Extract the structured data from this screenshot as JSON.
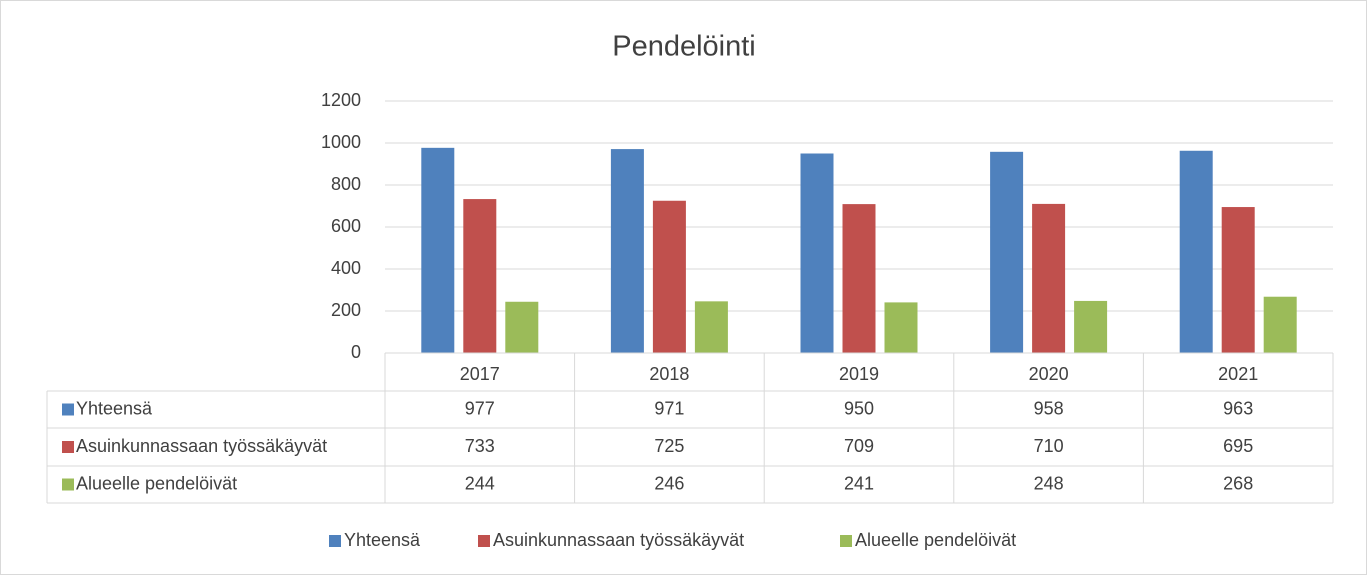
{
  "chart_data": {
    "type": "bar",
    "title": "Pendelöinti",
    "categories": [
      "2017",
      "2018",
      "2019",
      "2020",
      "2021"
    ],
    "series": [
      {
        "name": "Yhteensä",
        "color": "#4f81bd",
        "values": [
          977,
          971,
          950,
          958,
          963
        ]
      },
      {
        "name": "Asuinkunnassaan työssäkäyvät",
        "color": "#c0504d",
        "values": [
          733,
          725,
          709,
          710,
          695
        ]
      },
      {
        "name": "Alueelle pendelöivät",
        "color": "#9bbb59",
        "values": [
          244,
          246,
          241,
          248,
          268
        ]
      }
    ],
    "ylim": [
      0,
      1200
    ],
    "yticks": [
      0,
      200,
      400,
      600,
      800,
      1000,
      1200
    ],
    "grid": true,
    "data_table": true,
    "legend": "bottom"
  }
}
